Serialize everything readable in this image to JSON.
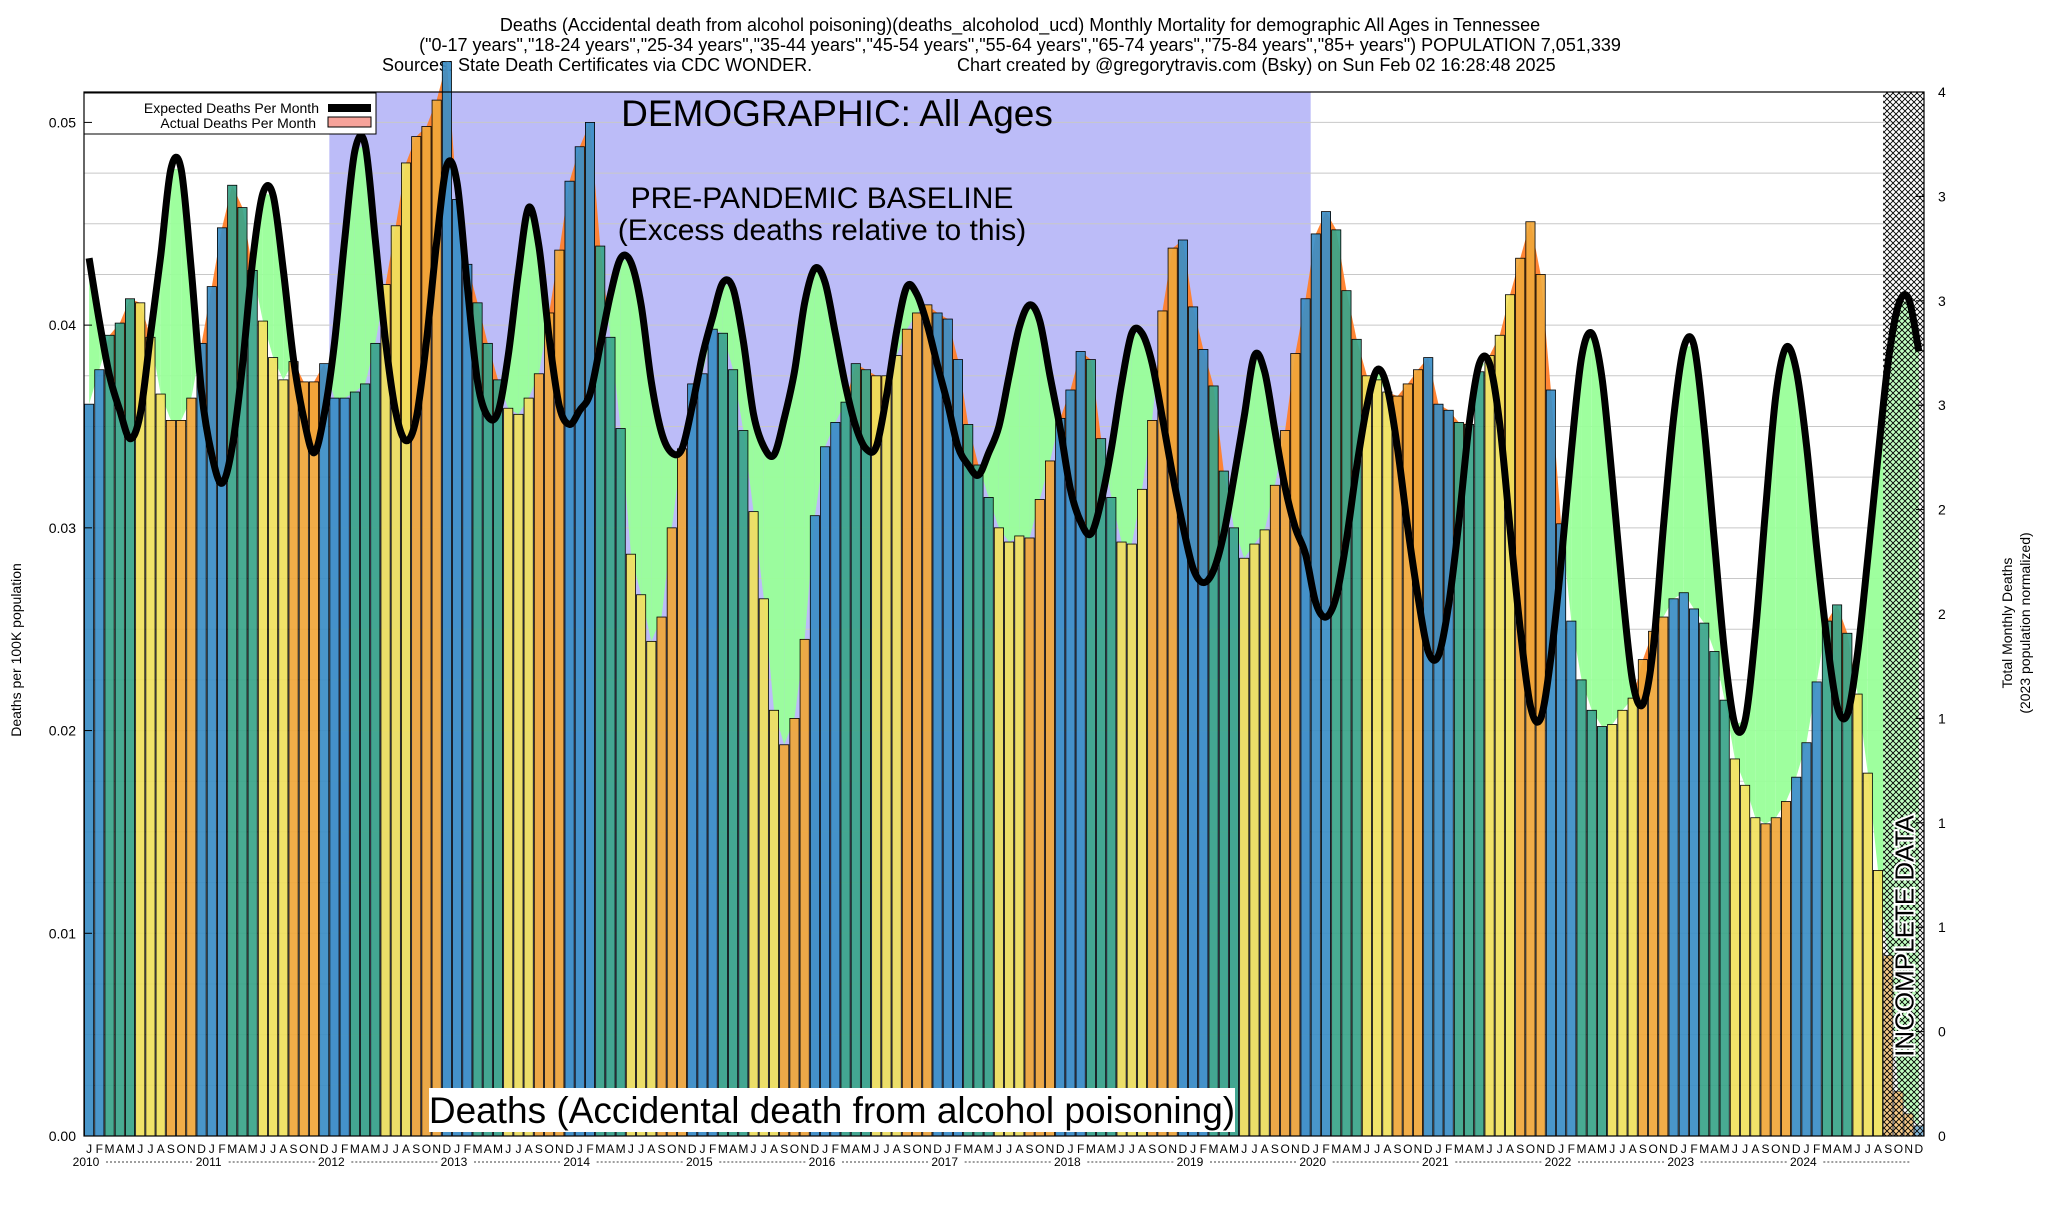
{
  "header": {
    "line1": "Deaths (Accidental death from alcohol poisoning)(deaths_alcoholod_ucd) Monthly Mortality for demographic All Ages in Tennessee",
    "line2": "(\"0-17 years\",\"18-24 years\",\"25-34 years\",\"35-44 years\",\"45-54 years\",\"55-64 years\",\"65-74 years\",\"75-84 years\",\"85+ years\") POPULATION 7,051,339",
    "line3_left": "Sources: State Death Certificates via CDC WONDER.",
    "line3_right": "Chart created by @gregorytravis.com (Bsky) on Sun Feb 02 16:28:48 2025"
  },
  "legend": {
    "expected": "Expected Deaths Per Month",
    "actual": "Actual Deaths Per Month"
  },
  "overlay": {
    "demographic": "DEMOGRAPHIC: All Ages",
    "baseline_line1": "PRE-PANDEMIC BASELINE",
    "baseline_line2": "(Excess deaths relative to this)",
    "incomplete": "INCOMPLETE DATA",
    "bottom_label": "Deaths (Accidental death from alcohol poisoning)"
  },
  "axes": {
    "ylabel_left": "Deaths per 100K population",
    "ylabel_right_line1": "Total Monthly Deaths",
    "ylabel_right_line2": "(2023 population normalized)"
  },
  "colors": {
    "winter": "#3b8ec6",
    "spring": "#3aa58a",
    "summer": "#f0e15e",
    "fall": "#f0a73a",
    "baseline_band": "#bcbcf8",
    "deficit_fill": "#99ff99",
    "excess_fill": "#ff7f2a",
    "expected_line": "#000000"
  },
  "chart_data": {
    "type": "bar",
    "x_start": "2010-01",
    "frequency": "monthly",
    "ylim": [
      0,
      0.0515
    ],
    "y2lim": [
      0,
      4
    ],
    "yticks": [
      "0.00",
      "0.01",
      "0.02",
      "0.03",
      "0.04",
      "0.05"
    ],
    "y2ticks": [
      "0",
      "0",
      "1",
      "1",
      "1",
      "2",
      "2",
      "3",
      "3",
      "3",
      "4"
    ],
    "month_letters": [
      "J",
      "F",
      "M",
      "A",
      "M",
      "J",
      "J",
      "A",
      "S",
      "O",
      "N",
      "D"
    ],
    "years": [
      "2010",
      "2011",
      "2012",
      "2013",
      "2014",
      "2015",
      "2016",
      "2017",
      "2018",
      "2019",
      "2020",
      "2021",
      "2022",
      "2023",
      "2024"
    ],
    "baseline_period": [
      "2012-01",
      "2019-12"
    ],
    "incomplete_from": "2024-09",
    "series": [
      {
        "name": "Actual Deaths Per Month",
        "values": [
          0.0361,
          0.0378,
          0.0395,
          0.0401,
          0.0413,
          0.0411,
          0.0394,
          0.0366,
          0.0353,
          0.0353,
          0.0364,
          0.0391,
          0.0419,
          0.0448,
          0.0469,
          0.0458,
          0.0427,
          0.0402,
          0.0384,
          0.0373,
          0.0382,
          0.0372,
          0.0372,
          0.0381,
          0.0364,
          0.0364,
          0.0367,
          0.0371,
          0.0391,
          0.042,
          0.0449,
          0.048,
          0.0493,
          0.0498,
          0.0511,
          0.053,
          0.0462,
          0.043,
          0.0411,
          0.0391,
          0.0373,
          0.0359,
          0.0356,
          0.0364,
          0.0376,
          0.0406,
          0.0437,
          0.0471,
          0.0488,
          0.05,
          0.0439,
          0.0394,
          0.0349,
          0.0287,
          0.0267,
          0.0244,
          0.0256,
          0.03,
          0.0339,
          0.0371,
          0.0376,
          0.0398,
          0.0396,
          0.0378,
          0.0348,
          0.0308,
          0.0265,
          0.021,
          0.0193,
          0.0206,
          0.0245,
          0.0306,
          0.034,
          0.0352,
          0.0362,
          0.0381,
          0.0378,
          0.0375,
          0.0375,
          0.0385,
          0.0398,
          0.0406,
          0.041,
          0.0406,
          0.0403,
          0.0383,
          0.0351,
          0.0331,
          0.0315,
          0.03,
          0.0293,
          0.0296,
          0.0295,
          0.0314,
          0.0333,
          0.0354,
          0.0368,
          0.0387,
          0.0383,
          0.0344,
          0.0315,
          0.0293,
          0.0292,
          0.0319,
          0.0353,
          0.0407,
          0.0438,
          0.0442,
          0.0409,
          0.0388,
          0.037,
          0.0328,
          0.03,
          0.0285,
          0.0292,
          0.0299,
          0.0321,
          0.0348,
          0.0386,
          0.0413,
          0.0445,
          0.0456,
          0.0447,
          0.0417,
          0.0393,
          0.0375,
          0.0373,
          0.0367,
          0.0365,
          0.0371,
          0.0378,
          0.0384,
          0.0361,
          0.0358,
          0.0352,
          0.0351,
          0.0377,
          0.0385,
          0.0395,
          0.0415,
          0.0433,
          0.0451,
          0.0425,
          0.0368,
          0.0302,
          0.0254,
          0.0225,
          0.021,
          0.0202,
          0.0203,
          0.021,
          0.0216,
          0.0235,
          0.0249,
          0.0256,
          0.0265,
          0.0268,
          0.026,
          0.0253,
          0.0239,
          0.0215,
          0.0186,
          0.0173,
          0.0157,
          0.0154,
          0.0157,
          0.0165,
          0.0177,
          0.0194,
          0.0224,
          0.0254,
          0.0262,
          0.0248,
          0.0218,
          0.0179,
          0.0131,
          0.0089,
          0.0022,
          0.0011,
          0.0005
        ]
      },
      {
        "name": "Expected Deaths Per Month",
        "values": [
          0.0433,
          0.0402,
          0.0375,
          0.0358,
          0.0344,
          0.0356,
          0.0395,
          0.0434,
          0.0477,
          0.0477,
          0.0427,
          0.0367,
          0.0336,
          0.0322,
          0.034,
          0.038,
          0.0432,
          0.0465,
          0.0464,
          0.0427,
          0.0383,
          0.0354,
          0.0337,
          0.0356,
          0.0391,
          0.0442,
          0.0486,
          0.0489,
          0.0442,
          0.0392,
          0.0357,
          0.0343,
          0.0354,
          0.0392,
          0.0441,
          0.0479,
          0.047,
          0.0419,
          0.0372,
          0.0355,
          0.0357,
          0.0385,
          0.0426,
          0.0458,
          0.0439,
          0.0394,
          0.036,
          0.0351,
          0.0358,
          0.0366,
          0.039,
          0.0415,
          0.0433,
          0.0431,
          0.041,
          0.0372,
          0.0347,
          0.0337,
          0.0339,
          0.036,
          0.0385,
          0.0404,
          0.0421,
          0.0418,
          0.0392,
          0.0356,
          0.034,
          0.0336,
          0.0354,
          0.0377,
          0.0411,
          0.0428,
          0.0421,
          0.0396,
          0.037,
          0.035,
          0.0339,
          0.034,
          0.0365,
          0.0397,
          0.0419,
          0.0415,
          0.04,
          0.038,
          0.0361,
          0.034,
          0.0331,
          0.0326,
          0.0337,
          0.035,
          0.0375,
          0.0399,
          0.041,
          0.0402,
          0.0375,
          0.0349,
          0.0319,
          0.0303,
          0.0297,
          0.0313,
          0.0339,
          0.0371,
          0.0396,
          0.0396,
          0.0381,
          0.0354,
          0.0326,
          0.0301,
          0.028,
          0.0273,
          0.0279,
          0.0297,
          0.0325,
          0.0355,
          0.0385,
          0.0377,
          0.0348,
          0.032,
          0.03,
          0.0287,
          0.0263,
          0.0256,
          0.0266,
          0.0294,
          0.033,
          0.036,
          0.0378,
          0.0369,
          0.0339,
          0.03,
          0.0266,
          0.0239,
          0.0237,
          0.0262,
          0.0303,
          0.0351,
          0.0381,
          0.0381,
          0.0351,
          0.03,
          0.025,
          0.0212,
          0.0206,
          0.0236,
          0.0283,
          0.0338,
          0.0384,
          0.0396,
          0.0374,
          0.0324,
          0.0269,
          0.0224,
          0.0213,
          0.024,
          0.03,
          0.0354,
          0.0389,
          0.039,
          0.0349,
          0.0293,
          0.0238,
          0.0203,
          0.0205,
          0.0248,
          0.0309,
          0.0365,
          0.0389,
          0.0378,
          0.0341,
          0.029,
          0.0245,
          0.0212,
          0.0208,
          0.0238,
          0.0285,
          0.0335,
          0.0382,
          0.041,
          0.0413,
          0.0387
        ]
      }
    ]
  }
}
